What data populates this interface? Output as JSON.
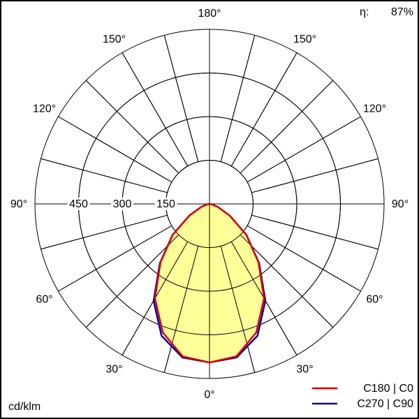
{
  "chart_data": {
    "type": "polar",
    "efficiency_label": "η:",
    "efficiency": "87%",
    "unit": "cd/klm",
    "rlim": [
      0,
      600
    ],
    "rticks": [
      150,
      300,
      450
    ],
    "angle_grid": 15,
    "angle_ticks": [
      {
        "value": 0,
        "label": "0°"
      },
      {
        "value": 30,
        "label": "30°"
      },
      {
        "value": 60,
        "label": "60°"
      },
      {
        "value": 90,
        "label": "90°"
      },
      {
        "value": 120,
        "label": "120°"
      },
      {
        "value": 150,
        "label": "150°"
      },
      {
        "value": 180,
        "label": "180°"
      }
    ],
    "angles": [
      0,
      10,
      20,
      30,
      40,
      50,
      60,
      70,
      80,
      90
    ],
    "fill": "#ffff99",
    "series": [
      {
        "name": "C270 | C90",
        "color": "#0000aa",
        "values": [
          545,
          536,
          482,
          384,
          265,
          166,
          80,
          30,
          8,
          0
        ]
      },
      {
        "name": "C180 | C0",
        "color": "#dd0000",
        "values": [
          545,
          532,
          470,
          375,
          262,
          165,
          80,
          30,
          8,
          0
        ]
      }
    ]
  }
}
